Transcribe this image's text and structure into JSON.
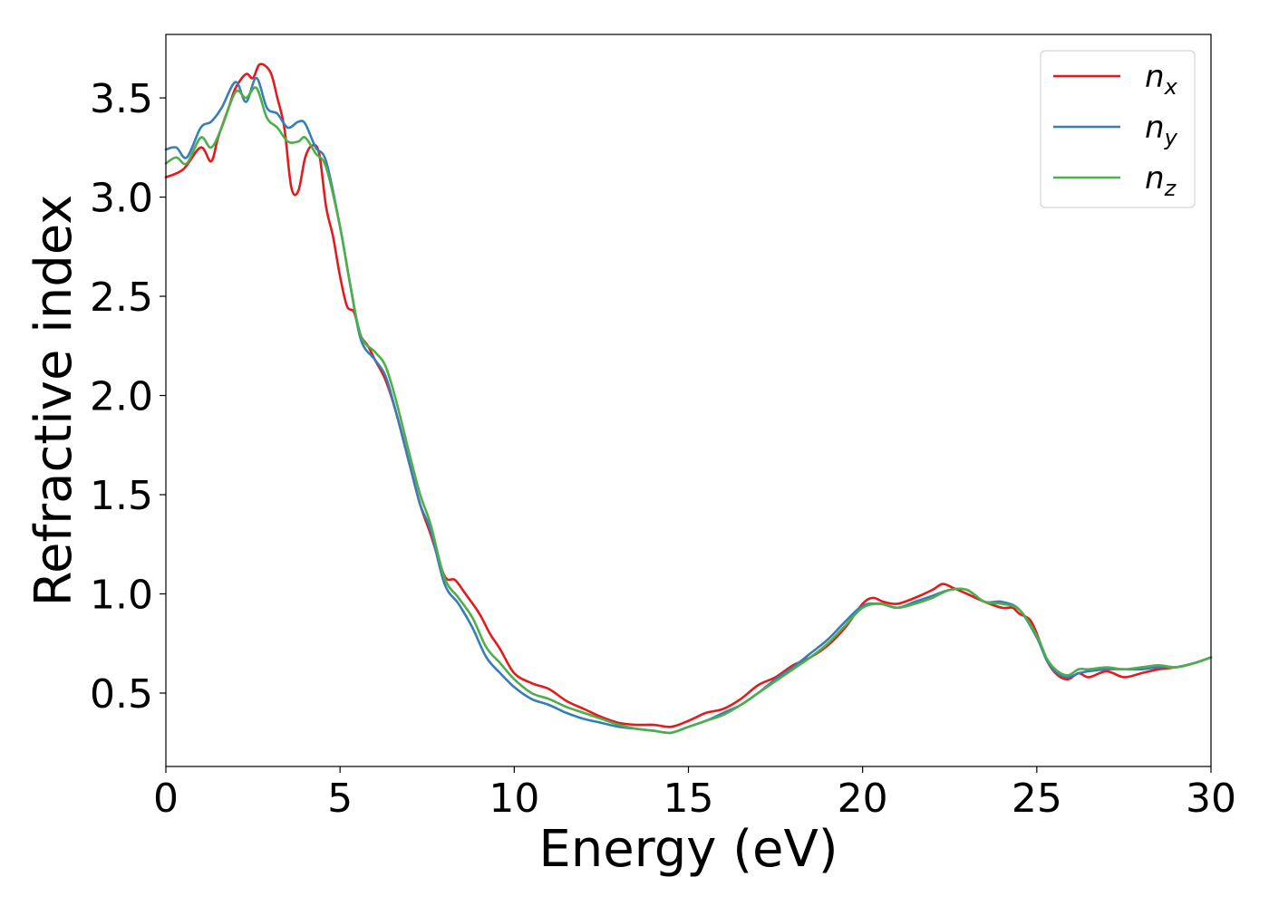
{
  "chart_data": {
    "type": "line",
    "title": "",
    "xlabel": "Energy (eV)",
    "ylabel": "Refractive index",
    "xlim": [
      0,
      30
    ],
    "ylim": [
      0.13,
      3.82
    ],
    "xticks": [
      0,
      5,
      10,
      15,
      20,
      25,
      30
    ],
    "xtick_labels": [
      "0",
      "5",
      "10",
      "15",
      "20",
      "25",
      "30"
    ],
    "yticks": [
      0.5,
      1.0,
      1.5,
      2.0,
      2.5,
      3.0,
      3.5
    ],
    "ytick_labels": [
      "0.5",
      "1.0",
      "1.5",
      "2.0",
      "2.5",
      "3.0",
      "3.5"
    ],
    "grid": false,
    "legend_position": "top-right",
    "series": [
      {
        "name": "n",
        "subscript": "x",
        "color": "#e41a1c",
        "x": [
          0,
          0.5,
          1.0,
          1.3,
          1.5,
          1.8,
          2.0,
          2.3,
          2.5,
          2.7,
          3.0,
          3.2,
          3.4,
          3.6,
          3.8,
          4.0,
          4.2,
          4.4,
          4.6,
          4.8,
          5.0,
          5.2,
          5.4,
          5.6,
          5.8,
          6.0,
          6.3,
          6.6,
          7.0,
          7.3,
          7.6,
          8.0,
          8.3,
          8.6,
          9.0,
          9.3,
          9.6,
          10.0,
          10.5,
          11.0,
          11.5,
          12.0,
          12.5,
          13.0,
          13.5,
          14.0,
          14.5,
          15.0,
          15.5,
          16.0,
          16.5,
          17.0,
          17.5,
          18.0,
          18.5,
          19.0,
          19.5,
          20.0,
          20.3,
          20.6,
          21.0,
          21.5,
          22.0,
          22.3,
          22.6,
          23.0,
          23.5,
          24.0,
          24.3,
          24.5,
          24.8,
          25.0,
          25.3,
          25.6,
          25.9,
          26.2,
          26.5,
          27.0,
          27.5,
          28.0,
          28.5,
          29.0,
          29.5,
          30.0
        ],
        "y": [
          3.1,
          3.14,
          3.25,
          3.18,
          3.3,
          3.45,
          3.55,
          3.62,
          3.6,
          3.67,
          3.63,
          3.5,
          3.35,
          3.05,
          3.03,
          3.2,
          3.26,
          3.22,
          2.95,
          2.8,
          2.6,
          2.45,
          2.42,
          2.3,
          2.25,
          2.18,
          2.08,
          1.92,
          1.65,
          1.45,
          1.3,
          1.09,
          1.07,
          1.0,
          0.9,
          0.8,
          0.72,
          0.6,
          0.55,
          0.52,
          0.46,
          0.42,
          0.38,
          0.35,
          0.34,
          0.34,
          0.33,
          0.36,
          0.4,
          0.42,
          0.47,
          0.54,
          0.58,
          0.64,
          0.68,
          0.74,
          0.83,
          0.95,
          0.98,
          0.96,
          0.95,
          0.98,
          1.02,
          1.05,
          1.03,
          1.0,
          0.96,
          0.93,
          0.93,
          0.9,
          0.87,
          0.8,
          0.66,
          0.59,
          0.57,
          0.6,
          0.58,
          0.61,
          0.58,
          0.6,
          0.62,
          0.63,
          0.65,
          0.68
        ]
      },
      {
        "name": "n",
        "subscript": "y",
        "color": "#377eb8",
        "x": [
          0,
          0.3,
          0.6,
          1.0,
          1.3,
          1.6,
          2.0,
          2.3,
          2.6,
          2.9,
          3.2,
          3.5,
          3.8,
          4.0,
          4.3,
          4.6,
          5.0,
          5.3,
          5.6,
          6.0,
          6.3,
          6.6,
          7.0,
          7.3,
          7.6,
          8.0,
          8.4,
          8.8,
          9.2,
          9.6,
          10.0,
          10.5,
          11.0,
          11.5,
          12.0,
          12.5,
          13.0,
          13.5,
          14.0,
          14.5,
          15.0,
          15.5,
          16.0,
          16.5,
          17.0,
          17.5,
          18.0,
          18.5,
          19.0,
          19.5,
          20.0,
          20.5,
          21.0,
          21.5,
          22.0,
          22.5,
          23.0,
          23.5,
          24.0,
          24.5,
          25.0,
          25.3,
          25.6,
          25.9,
          26.2,
          26.5,
          27.0,
          27.5,
          28.0,
          28.5,
          29.0,
          29.5,
          30.0
        ],
        "y": [
          3.24,
          3.25,
          3.2,
          3.35,
          3.38,
          3.45,
          3.58,
          3.48,
          3.6,
          3.45,
          3.42,
          3.35,
          3.38,
          3.37,
          3.25,
          3.18,
          2.85,
          2.55,
          2.28,
          2.18,
          2.1,
          1.92,
          1.65,
          1.45,
          1.32,
          1.05,
          0.95,
          0.83,
          0.68,
          0.6,
          0.53,
          0.47,
          0.44,
          0.4,
          0.37,
          0.35,
          0.33,
          0.32,
          0.31,
          0.3,
          0.33,
          0.36,
          0.4,
          0.44,
          0.5,
          0.57,
          0.63,
          0.7,
          0.77,
          0.86,
          0.94,
          0.95,
          0.93,
          0.96,
          0.99,
          1.02,
          1.02,
          0.96,
          0.96,
          0.92,
          0.78,
          0.66,
          0.6,
          0.58,
          0.6,
          0.61,
          0.62,
          0.62,
          0.62,
          0.63,
          0.63,
          0.65,
          0.68
        ]
      },
      {
        "name": "n",
        "subscript": "z",
        "color": "#4daf4a",
        "x": [
          0,
          0.3,
          0.6,
          1.0,
          1.3,
          1.6,
          2.0,
          2.3,
          2.6,
          2.9,
          3.2,
          3.5,
          3.8,
          4.0,
          4.3,
          4.6,
          5.0,
          5.3,
          5.6,
          6.0,
          6.3,
          6.6,
          7.0,
          7.3,
          7.6,
          8.0,
          8.4,
          8.8,
          9.2,
          9.6,
          10.0,
          10.5,
          11.0,
          11.5,
          12.0,
          12.5,
          13.0,
          13.5,
          14.0,
          14.5,
          15.0,
          15.5,
          16.0,
          16.5,
          17.0,
          17.5,
          18.0,
          18.5,
          19.0,
          19.5,
          20.0,
          20.5,
          21.0,
          21.5,
          22.0,
          22.5,
          23.0,
          23.5,
          24.0,
          24.5,
          25.0,
          25.3,
          25.6,
          25.9,
          26.2,
          26.5,
          27.0,
          27.5,
          28.0,
          28.5,
          29.0,
          29.5,
          30.0
        ],
        "y": [
          3.17,
          3.2,
          3.17,
          3.3,
          3.25,
          3.35,
          3.53,
          3.5,
          3.55,
          3.4,
          3.35,
          3.28,
          3.28,
          3.3,
          3.22,
          3.15,
          2.85,
          2.55,
          2.3,
          2.22,
          2.15,
          1.98,
          1.7,
          1.5,
          1.35,
          1.08,
          0.98,
          0.88,
          0.73,
          0.65,
          0.57,
          0.5,
          0.47,
          0.43,
          0.4,
          0.37,
          0.34,
          0.32,
          0.31,
          0.3,
          0.33,
          0.36,
          0.39,
          0.44,
          0.5,
          0.56,
          0.62,
          0.68,
          0.75,
          0.84,
          0.93,
          0.95,
          0.93,
          0.95,
          0.98,
          1.02,
          1.02,
          0.96,
          0.95,
          0.92,
          0.79,
          0.67,
          0.61,
          0.59,
          0.62,
          0.62,
          0.63,
          0.62,
          0.63,
          0.64,
          0.63,
          0.65,
          0.68
        ]
      }
    ]
  }
}
